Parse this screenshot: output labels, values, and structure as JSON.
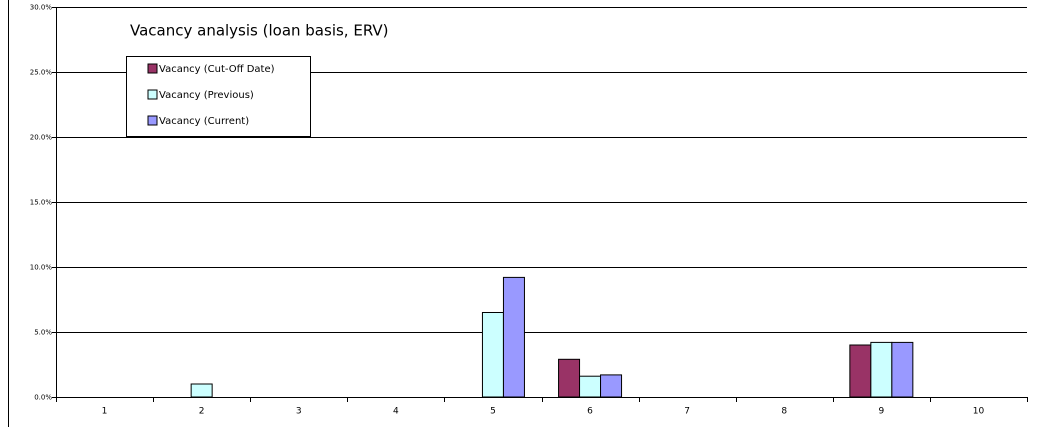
{
  "chart_data": {
    "type": "bar",
    "title": "Vacancy analysis (loan basis, ERV)",
    "categories": [
      "1",
      "2",
      "3",
      "4",
      "5",
      "6",
      "7",
      "8",
      "9",
      "10"
    ],
    "series": [
      {
        "name": "Vacancy (Cut-Off Date)",
        "color": "#993366",
        "values": [
          0,
          0,
          0,
          0,
          0,
          2.9,
          0,
          0,
          4.0,
          0
        ]
      },
      {
        "name": "Vacancy (Previous)",
        "color": "#ccffff",
        "values": [
          0,
          1.0,
          0,
          0,
          6.5,
          1.6,
          0,
          0,
          4.2,
          0
        ]
      },
      {
        "name": "Vacancy (Current)",
        "color": "#9999ff",
        "values": [
          0,
          0,
          0,
          0,
          9.2,
          1.7,
          0,
          0,
          4.2,
          0
        ]
      }
    ],
    "ylim": [
      0,
      30
    ],
    "yticks": [
      {
        "value": 0,
        "label": "0.0%"
      },
      {
        "value": 5,
        "label": "5.0%"
      },
      {
        "value": 10,
        "label": "10.0%"
      },
      {
        "value": 15,
        "label": "15.0%"
      },
      {
        "value": 20,
        "label": "20.0%"
      },
      {
        "value": 25,
        "label": "25.0%"
      },
      {
        "value": 30,
        "label": "30.0%"
      }
    ],
    "grid": true,
    "legend": "top-left"
  }
}
